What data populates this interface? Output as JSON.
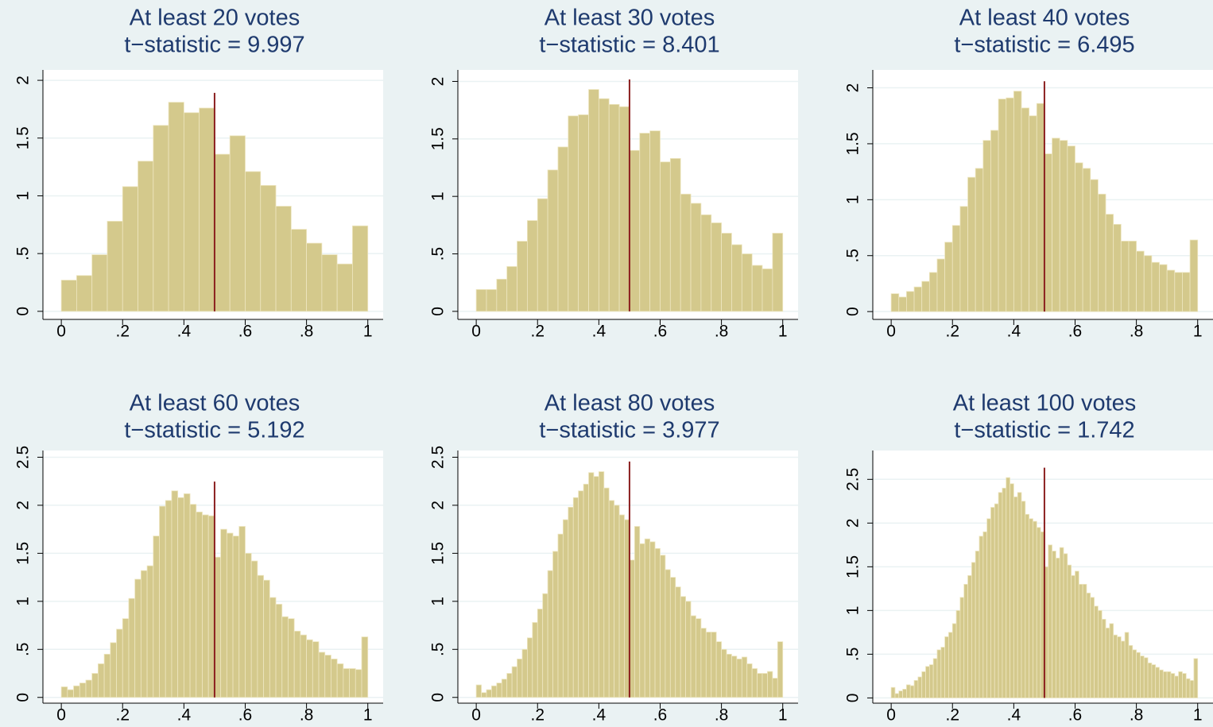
{
  "chart_data": [
    {
      "type": "histogram",
      "title": "At least 20 votes",
      "subtitle": "t−statistic = 9.997",
      "bins": [
        0,
        0.05,
        0.1,
        0.15,
        0.2,
        0.25,
        0.3,
        0.35,
        0.4,
        0.45,
        0.5,
        0.55,
        0.6,
        0.65,
        0.7,
        0.75,
        0.8,
        0.85,
        0.9,
        0.95,
        1
      ],
      "values": [
        0.27,
        0.31,
        0.49,
        0.78,
        1.08,
        1.3,
        1.61,
        1.81,
        1.72,
        1.76,
        1.36,
        1.52,
        1.21,
        1.09,
        0.91,
        0.71,
        0.59,
        0.49,
        0.41,
        0.74
      ],
      "vline": 0.5,
      "color": "#d4c98c",
      "vline_color": "#8b1f1f",
      "xlim": [
        -0.06,
        1.05
      ],
      "ylim": [
        -0.07,
        2.09
      ],
      "xticks": [
        0,
        {
          "value": 0.2,
          "label": ".2"
        },
        {
          "value": 0.4,
          "label": ".4"
        },
        {
          "value": 0.6,
          "label": ".6"
        },
        {
          "value": 0.8,
          "label": ".8"
        },
        1
      ],
      "yticks": [
        0,
        {
          "value": 0.5,
          "label": ".5"
        },
        1,
        1.5,
        2
      ],
      "grid": true
    },
    {
      "type": "histogram",
      "title": "At least 30 votes",
      "subtitle": "t−statistic = 8.401",
      "bins": [
        0,
        0.0333,
        0.0667,
        0.1,
        0.1333,
        0.1667,
        0.2,
        0.2333,
        0.2667,
        0.3,
        0.3333,
        0.3667,
        0.4,
        0.4333,
        0.4667,
        0.5,
        0.5333,
        0.5667,
        0.6,
        0.6333,
        0.6667,
        0.7,
        0.7333,
        0.7667,
        0.8,
        0.8333,
        0.8667,
        0.9,
        0.9333,
        0.9667,
        1
      ],
      "values": [
        0.19,
        0.19,
        0.28,
        0.39,
        0.61,
        0.79,
        0.98,
        1.23,
        1.43,
        1.7,
        1.71,
        1.93,
        1.85,
        1.8,
        1.78,
        1.4,
        1.55,
        1.57,
        1.3,
        1.33,
        1.02,
        0.94,
        0.84,
        0.77,
        0.68,
        0.58,
        0.5,
        0.4,
        0.37,
        0.68
      ],
      "vline": 0.5,
      "color": "#d4c98c",
      "vline_color": "#8b1f1f",
      "xlim": [
        -0.06,
        1.05
      ],
      "ylim": [
        -0.07,
        2.1
      ],
      "xticks": [
        0,
        {
          "value": 0.2,
          "label": ".2"
        },
        {
          "value": 0.4,
          "label": ".4"
        },
        {
          "value": 0.6,
          "label": ".6"
        },
        {
          "value": 0.8,
          "label": ".8"
        },
        1
      ],
      "yticks": [
        0,
        {
          "value": 0.5,
          "label": ".5"
        },
        1,
        1.5,
        2
      ],
      "grid": true
    },
    {
      "type": "histogram",
      "title": "At least 40 votes",
      "subtitle": "t−statistic = 6.495",
      "bins": [
        0,
        0.025,
        0.05,
        0.075,
        0.1,
        0.125,
        0.15,
        0.175,
        0.2,
        0.225,
        0.25,
        0.275,
        0.3,
        0.325,
        0.35,
        0.375,
        0.4,
        0.425,
        0.45,
        0.475,
        0.5,
        0.525,
        0.55,
        0.575,
        0.6,
        0.625,
        0.65,
        0.675,
        0.7,
        0.725,
        0.75,
        0.775,
        0.8,
        0.825,
        0.85,
        0.875,
        0.9,
        0.925,
        0.95,
        0.975,
        1
      ],
      "values": [
        0.16,
        0.13,
        0.18,
        0.22,
        0.27,
        0.35,
        0.47,
        0.62,
        0.77,
        0.94,
        1.2,
        1.28,
        1.53,
        1.62,
        1.9,
        1.91,
        1.97,
        1.82,
        1.75,
        1.86,
        1.41,
        1.55,
        1.53,
        1.48,
        1.33,
        1.28,
        1.18,
        1.05,
        0.87,
        0.78,
        0.63,
        0.63,
        0.54,
        0.5,
        0.44,
        0.42,
        0.37,
        0.35,
        0.35,
        0.64
      ],
      "vline": 0.5,
      "color": "#d4c98c",
      "vline_color": "#8b1f1f",
      "xlim": [
        -0.06,
        1.05
      ],
      "ylim": [
        -0.07,
        2.16
      ],
      "xticks": [
        0,
        {
          "value": 0.2,
          "label": ".2"
        },
        {
          "value": 0.4,
          "label": ".4"
        },
        {
          "value": 0.6,
          "label": ".6"
        },
        {
          "value": 0.8,
          "label": ".8"
        },
        1
      ],
      "yticks": [
        0,
        {
          "value": 0.5,
          "label": ".5"
        },
        1,
        1.5,
        2
      ],
      "grid": true
    },
    {
      "type": "histogram",
      "title": "At least 60 votes",
      "subtitle": "t−statistic = 5.192",
      "bins": [
        0,
        0.02,
        0.04,
        0.06,
        0.08,
        0.1,
        0.12,
        0.14,
        0.16,
        0.18,
        0.2,
        0.22,
        0.24,
        0.26,
        0.28,
        0.3,
        0.32,
        0.34,
        0.36,
        0.38,
        0.4,
        0.42,
        0.44,
        0.46,
        0.48,
        0.5,
        0.52,
        0.54,
        0.56,
        0.58,
        0.6,
        0.62,
        0.64,
        0.66,
        0.68,
        0.7,
        0.72,
        0.74,
        0.76,
        0.78,
        0.8,
        0.82,
        0.84,
        0.86,
        0.88,
        0.9,
        0.92,
        0.94,
        0.96,
        0.98,
        1
      ],
      "values": [
        0.11,
        0.08,
        0.12,
        0.15,
        0.18,
        0.25,
        0.35,
        0.45,
        0.57,
        0.71,
        0.82,
        1.03,
        1.23,
        1.32,
        1.37,
        1.68,
        1.99,
        2.05,
        2.15,
        2.08,
        2.12,
        2.01,
        1.93,
        1.9,
        1.89,
        1.46,
        1.75,
        1.71,
        1.68,
        1.78,
        1.5,
        1.42,
        1.27,
        1.22,
        1.04,
        0.97,
        0.84,
        0.82,
        0.69,
        0.65,
        0.6,
        0.58,
        0.47,
        0.44,
        0.4,
        0.35,
        0.3,
        0.3,
        0.29,
        0.63
      ],
      "vline": 0.5,
      "color": "#d4c98c",
      "vline_color": "#8b1f1f",
      "xlim": [
        -0.06,
        1.05
      ],
      "ylim": [
        -0.06,
        2.57
      ],
      "xticks": [
        0,
        {
          "value": 0.2,
          "label": ".2"
        },
        {
          "value": 0.4,
          "label": ".4"
        },
        {
          "value": 0.6,
          "label": ".6"
        },
        {
          "value": 0.8,
          "label": ".8"
        },
        1
      ],
      "yticks": [
        0,
        {
          "value": 0.5,
          "label": ".5"
        },
        1,
        1.5,
        2,
        2.5
      ],
      "grid": true
    },
    {
      "type": "histogram",
      "title": "At least 80 votes",
      "subtitle": "t−statistic = 3.977",
      "bins": [
        0,
        0.0167,
        0.0333,
        0.05,
        0.0667,
        0.0833,
        0.1,
        0.1167,
        0.1333,
        0.15,
        0.1667,
        0.1833,
        0.2,
        0.2167,
        0.2333,
        0.25,
        0.2667,
        0.2833,
        0.3,
        0.3167,
        0.3333,
        0.35,
        0.3667,
        0.3833,
        0.4,
        0.4167,
        0.4333,
        0.45,
        0.4667,
        0.4833,
        0.5,
        0.5167,
        0.5333,
        0.55,
        0.5667,
        0.5833,
        0.6,
        0.6167,
        0.6333,
        0.65,
        0.6667,
        0.6833,
        0.7,
        0.7167,
        0.7333,
        0.75,
        0.7667,
        0.7833,
        0.8,
        0.8167,
        0.8333,
        0.85,
        0.8667,
        0.8833,
        0.9,
        0.9167,
        0.9333,
        0.95,
        0.9667,
        0.9833,
        1
      ],
      "values": [
        0.13,
        0.05,
        0.08,
        0.12,
        0.15,
        0.19,
        0.25,
        0.32,
        0.4,
        0.5,
        0.62,
        0.78,
        0.92,
        1.08,
        1.32,
        1.52,
        1.7,
        1.85,
        1.98,
        2.08,
        2.15,
        2.22,
        2.34,
        2.3,
        2.35,
        2.18,
        2.05,
        2.0,
        1.9,
        1.85,
        1.43,
        1.78,
        1.6,
        1.65,
        1.62,
        1.55,
        1.48,
        1.33,
        1.25,
        1.15,
        1.05,
        1.0,
        0.85,
        0.82,
        0.72,
        0.68,
        0.68,
        0.58,
        0.5,
        0.45,
        0.43,
        0.4,
        0.42,
        0.35,
        0.3,
        0.25,
        0.25,
        0.27,
        0.2,
        0.58
      ],
      "vline": 0.5,
      "color": "#d4c98c",
      "vline_color": "#8b1f1f",
      "xlim": [
        -0.06,
        1.05
      ],
      "ylim": [
        -0.06,
        2.57
      ],
      "xticks": [
        0,
        {
          "value": 0.2,
          "label": ".2"
        },
        {
          "value": 0.4,
          "label": ".4"
        },
        {
          "value": 0.6,
          "label": ".6"
        },
        {
          "value": 0.8,
          "label": ".8"
        },
        1
      ],
      "yticks": [
        0,
        {
          "value": 0.5,
          "label": ".5"
        },
        1,
        1.5,
        2,
        2.5
      ],
      "grid": true
    },
    {
      "type": "histogram",
      "title": "At least 100 votes",
      "subtitle": "t−statistic = 1.742",
      "bins": [
        0,
        0.0125,
        0.025,
        0.0375,
        0.05,
        0.0625,
        0.075,
        0.0875,
        0.1,
        0.1125,
        0.125,
        0.1375,
        0.15,
        0.1625,
        0.175,
        0.1875,
        0.2,
        0.2125,
        0.225,
        0.2375,
        0.25,
        0.2625,
        0.275,
        0.2875,
        0.3,
        0.3125,
        0.325,
        0.3375,
        0.35,
        0.3625,
        0.375,
        0.3875,
        0.4,
        0.4125,
        0.425,
        0.4375,
        0.45,
        0.4625,
        0.475,
        0.4875,
        0.5,
        0.5125,
        0.525,
        0.5375,
        0.55,
        0.5625,
        0.575,
        0.5875,
        0.6,
        0.6125,
        0.625,
        0.6375,
        0.65,
        0.6625,
        0.675,
        0.6875,
        0.7,
        0.7125,
        0.725,
        0.7375,
        0.75,
        0.7625,
        0.775,
        0.7875,
        0.8,
        0.8125,
        0.825,
        0.8375,
        0.85,
        0.8625,
        0.875,
        0.8875,
        0.9,
        0.9125,
        0.925,
        0.9375,
        0.95,
        0.9625,
        0.975,
        0.9875,
        1
      ],
      "values": [
        0.12,
        0.05,
        0.08,
        0.1,
        0.15,
        0.14,
        0.2,
        0.24,
        0.3,
        0.36,
        0.38,
        0.45,
        0.55,
        0.58,
        0.7,
        0.75,
        0.85,
        1.0,
        1.15,
        1.3,
        1.4,
        1.55,
        1.68,
        1.85,
        1.9,
        2.05,
        2.18,
        2.22,
        2.35,
        2.4,
        2.52,
        2.45,
        2.3,
        2.35,
        2.25,
        2.1,
        2.05,
        2.02,
        1.95,
        1.9,
        1.5,
        1.75,
        1.68,
        1.6,
        1.72,
        1.65,
        1.52,
        1.4,
        1.45,
        1.3,
        1.3,
        1.2,
        1.15,
        1.05,
        1.0,
        0.9,
        0.8,
        0.85,
        0.72,
        0.7,
        0.65,
        0.75,
        0.6,
        0.55,
        0.52,
        0.48,
        0.46,
        0.4,
        0.38,
        0.35,
        0.32,
        0.3,
        0.3,
        0.28,
        0.25,
        0.3,
        0.28,
        0.22,
        0.2,
        0.45
      ],
      "vline": 0.5,
      "color": "#d4c98c",
      "vline_color": "#8b1f1f",
      "xlim": [
        -0.06,
        1.05
      ],
      "ylim": [
        -0.06,
        2.83
      ],
      "xticks": [
        0,
        {
          "value": 0.2,
          "label": ".2"
        },
        {
          "value": 0.4,
          "label": ".4"
        },
        {
          "value": 0.6,
          "label": ".6"
        },
        {
          "value": 0.8,
          "label": ".8"
        },
        1
      ],
      "yticks": [
        0,
        {
          "value": 0.5,
          "label": ".5"
        },
        1,
        1.5,
        2,
        2.5
      ],
      "grid": true
    }
  ]
}
